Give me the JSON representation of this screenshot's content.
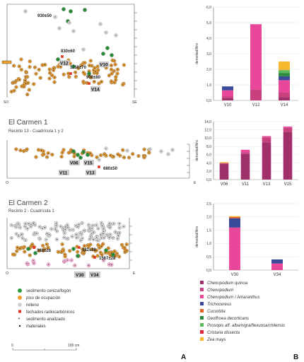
{
  "panel_letters": {
    "a": "A",
    "b": "B"
  },
  "profile_top": {
    "axis_left": "SO",
    "axis_right": "SE",
    "dates": [
      "930±50",
      "830±60",
      "1150±70",
      "900±80"
    ],
    "samples": [
      "V12",
      "V10",
      "V14"
    ]
  },
  "profile_c1": {
    "title": "El Carmen 1",
    "subtitle": "Recinto 13 - Cuadrícula 1 y 2",
    "axis_left": "O",
    "axis_right": "E",
    "dates": [
      "680±50"
    ],
    "samples": [
      "V06",
      "V15",
      "V11",
      "V13"
    ]
  },
  "profile_c2": {
    "title": "El Carmen 2",
    "subtitle": "Recinto 2 - Cuadrícula 1",
    "axis_left": "O",
    "axis_right": "E",
    "dates": [
      "382±28",
      "382±28",
      "1567±28"
    ],
    "samples": [
      "V30",
      "V34"
    ]
  },
  "legend_left": [
    {
      "label": "sedimento ceniza/fogón",
      "symbol": "green-dot-icon",
      "color": "#2e9e3e"
    },
    {
      "label": "piso de ocupación",
      "symbol": "orange-dot-icon",
      "color": "#f0a030"
    },
    {
      "label": "relleno",
      "symbol": "gray-dot-icon",
      "color": "#d0d0d0"
    },
    {
      "label": "fechados radiocarbónicos",
      "symbol": "red-square-icon",
      "color": "#e03020"
    },
    {
      "label": "sedimento analizado",
      "symbol": "star-icon",
      "color": "#111111"
    },
    {
      "label": "materiales",
      "symbol": "dot-icon",
      "color": "#111111"
    }
  ],
  "scale": {
    "start": "0",
    "end": "100 cm"
  },
  "legend_right": [
    {
      "label": "Chenopodium quinoa",
      "color": "#a0306a"
    },
    {
      "label": "Chenopodium",
      "color": "#c8407e"
    },
    {
      "label": "Chenopodium / Amaranthus",
      "color": "#e8479a"
    },
    {
      "label": "Trichocereus",
      "color": "#3a4a9a"
    },
    {
      "label": "Cucurbita",
      "color": "#e8602a"
    },
    {
      "label": "Geoffroea decorticans",
      "color": "#2e8a3e"
    },
    {
      "label": "Prosopis aff. alba/nigra/flexuosa/chilensis",
      "color": "#5cb85c"
    },
    {
      "label": "Cristaria dissecta",
      "color": "#d8283a"
    },
    {
      "label": "Zea mays",
      "color": "#f5b82e"
    }
  ],
  "chart_data": [
    {
      "type": "bar",
      "stacked": true,
      "ylabel": "densidad/litro",
      "ylim": [
        0,
        6
      ],
      "yticks": [
        "0,0",
        "1,0",
        "2,0",
        "3,0",
        "4,0",
        "5,0",
        "6,0"
      ],
      "categories": [
        "V10",
        "V12",
        "V14"
      ],
      "series": [
        {
          "name": "Chenopodium quinoa",
          "values": [
            0.15,
            0,
            0.2
          ]
        },
        {
          "name": "Chenopodium",
          "values": [
            0.1,
            0.7,
            0.3
          ]
        },
        {
          "name": "Chenopodium / Amaranthus",
          "values": [
            0.4,
            4.2,
            0.8
          ]
        },
        {
          "name": "Trichocereus",
          "values": [
            0.25,
            0,
            0.25
          ]
        },
        {
          "name": "Geoffroea decorticans",
          "values": [
            0,
            0,
            0.2
          ]
        },
        {
          "name": "Prosopis aff. alba/nigra/flexuosa/chilensis",
          "values": [
            0,
            0,
            0.2
          ]
        },
        {
          "name": "Zea mays",
          "values": [
            0,
            0,
            0.55
          ]
        }
      ]
    },
    {
      "type": "bar",
      "stacked": true,
      "ylabel": "densidad/litro",
      "ylim": [
        0,
        14
      ],
      "yticks": [
        "0,0",
        "2,0",
        "4,0",
        "6,0",
        "8,0",
        "10,0",
        "12,0",
        "14,0"
      ],
      "categories": [
        "V06",
        "V11",
        "V13",
        "V15"
      ],
      "series": [
        {
          "name": "Chenopodium quinoa",
          "values": [
            3.8,
            6.2,
            9.0,
            11.5
          ]
        },
        {
          "name": "Chenopodium",
          "values": [
            0.2,
            0.4,
            1.2,
            1.0
          ]
        },
        {
          "name": "Chenopodium / Amaranthus",
          "values": [
            0,
            0.6,
            0.3,
            0.3
          ]
        },
        {
          "name": "Zea mays",
          "values": [
            0.2,
            0,
            0,
            0
          ]
        }
      ]
    },
    {
      "type": "bar",
      "stacked": true,
      "ylabel": "densidad/litro",
      "ylim": [
        0,
        2.5
      ],
      "yticks": [
        "0,0",
        "0,5",
        "1,0",
        "1,5",
        "2,0",
        "2,5"
      ],
      "categories": [
        "V30",
        "V34"
      ],
      "series": [
        {
          "name": "Chenopodium / Amaranthus",
          "values": [
            1.6,
            0.25
          ]
        },
        {
          "name": "Trichocereus",
          "values": [
            0.35,
            0.15
          ]
        },
        {
          "name": "Cucurbita",
          "values": [
            0.05,
            0
          ]
        },
        {
          "name": "Zea mays",
          "values": [
            0.03,
            0
          ]
        }
      ]
    }
  ]
}
